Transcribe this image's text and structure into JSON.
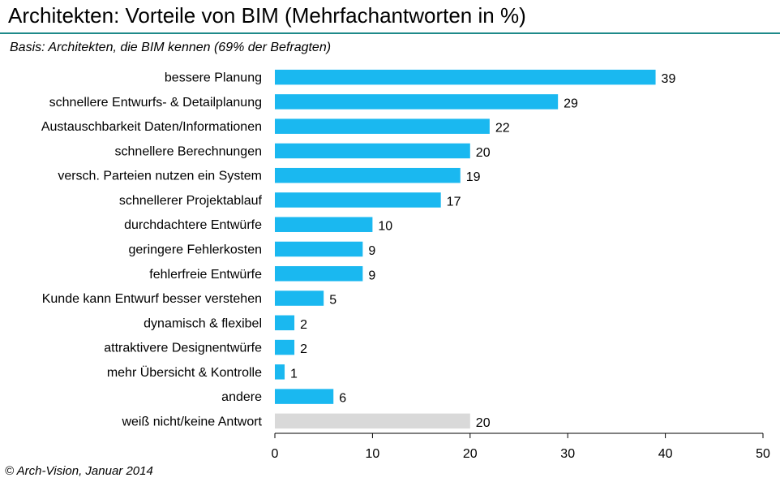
{
  "header": {
    "title": "Architekten: Vorteile von BIM (Mehrfachantworten in %)",
    "subtitle": "Basis: Architekten, die BIM kennen (69% der Befragten)"
  },
  "footer": {
    "source": "© Arch-Vision,  Januar  2014"
  },
  "colors": {
    "accent": "#1e8a8a",
    "bar": "#1ab8f0",
    "bar_muted": "#d9d9d9"
  },
  "chart_data": {
    "type": "bar",
    "orientation": "horizontal",
    "title": "Architekten: Vorteile von BIM (Mehrfachantworten in %)",
    "subtitle": "Basis: Architekten, die BIM kennen (69% der Befragten)",
    "categories": [
      "bessere Planung",
      "schnellere Entwurfs- & Detailplanung",
      "Austauschbarkeit Daten/Informationen",
      "schnellere Berechnungen",
      "versch. Parteien nutzen ein System",
      "schnellerer Projektablauf",
      "durchdachtere Entwürfe",
      "geringere Fehlerkosten",
      "fehlerfreie Entwürfe",
      "Kunde kann Entwurf besser verstehen",
      "dynamisch & flexibel",
      "attraktivere Designentwürfe",
      "mehr Übersicht & Kontrolle",
      "andere",
      "weiß nicht/keine Antwort"
    ],
    "values": [
      39,
      29,
      22,
      20,
      19,
      17,
      10,
      9,
      9,
      5,
      2,
      2,
      1,
      6,
      20
    ],
    "bar_colors": [
      "#1ab8f0",
      "#1ab8f0",
      "#1ab8f0",
      "#1ab8f0",
      "#1ab8f0",
      "#1ab8f0",
      "#1ab8f0",
      "#1ab8f0",
      "#1ab8f0",
      "#1ab8f0",
      "#1ab8f0",
      "#1ab8f0",
      "#1ab8f0",
      "#1ab8f0",
      "#d9d9d9"
    ],
    "xlim": [
      0,
      50
    ],
    "xticks": [
      0,
      10,
      20,
      30,
      40,
      50
    ],
    "xlabel": "",
    "ylabel": "",
    "grid": false,
    "legend": "none"
  }
}
